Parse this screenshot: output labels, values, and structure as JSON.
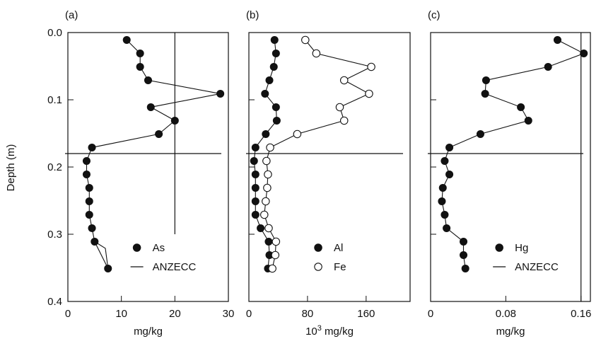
{
  "y_axis_label": "Depth (m)",
  "chart_data": [
    {
      "type": "line",
      "panel_label": "(a)",
      "xlabel": "mg/kg",
      "ylabel": "Depth (m)",
      "xlim": [
        0,
        30
      ],
      "ylim": [
        0.4,
        0.0
      ],
      "x_ticks": [
        0,
        10,
        20,
        30
      ],
      "y_ticks": [
        0.0,
        0.1,
        0.2,
        0.3,
        0.4
      ],
      "y_tick_labels": [
        "0.0",
        "0.1",
        "0.2",
        "0.3",
        "0.4"
      ],
      "hline_depth": 0.18,
      "legend_position": "bottom-right",
      "series": [
        {
          "name": "As",
          "marker": "filled-circle",
          "points": [
            [
              11.0,
              0.011
            ],
            [
              13.5,
              0.031
            ],
            [
              13.5,
              0.051
            ],
            [
              15.0,
              0.071
            ],
            [
              28.5,
              0.091
            ],
            [
              15.5,
              0.111
            ],
            [
              20.0,
              0.131
            ],
            [
              17.0,
              0.151
            ],
            [
              4.5,
              0.171
            ],
            [
              3.5,
              0.191
            ],
            [
              3.5,
              0.211
            ],
            [
              4.0,
              0.231
            ],
            [
              4.0,
              0.251
            ],
            [
              4.0,
              0.271
            ],
            [
              4.5,
              0.291
            ],
            [
              5.0,
              0.311
            ],
            [
              7.5,
              0.351
            ]
          ],
          "path_extra": [
            [
              7.5,
              0.351
            ],
            [
              7.0,
              0.321
            ],
            [
              5.0,
              0.311
            ]
          ]
        },
        {
          "name": "ANZECC",
          "marker": "line",
          "x": 20,
          "y_range": [
            0.0,
            0.3
          ]
        }
      ]
    },
    {
      "type": "line",
      "panel_label": "(b)",
      "xlabel_prefix": "10",
      "xlabel_sup": "3",
      "xlabel_suffix": " mg/kg",
      "xlim": [
        0,
        220
      ],
      "ylim": [
        0.4,
        0.0
      ],
      "x_ticks": [
        0,
        80,
        160
      ],
      "y_ticks": [
        0.0,
        0.1,
        0.2,
        0.3,
        0.4
      ],
      "hline_depth": 0.18,
      "legend_position": "bottom-right",
      "series": [
        {
          "name": "Al",
          "marker": "filled-circle",
          "points": [
            [
              35,
              0.011
            ],
            [
              37,
              0.031
            ],
            [
              34,
              0.051
            ],
            [
              28,
              0.071
            ],
            [
              22,
              0.091
            ],
            [
              37,
              0.111
            ],
            [
              38,
              0.131
            ],
            [
              23,
              0.151
            ],
            [
              9,
              0.171
            ],
            [
              7,
              0.191
            ],
            [
              9,
              0.211
            ],
            [
              9,
              0.231
            ],
            [
              9,
              0.251
            ],
            [
              9,
              0.271
            ],
            [
              16,
              0.291
            ],
            [
              27,
              0.311
            ],
            [
              28,
              0.331
            ],
            [
              26,
              0.351
            ]
          ]
        },
        {
          "name": "Fe",
          "marker": "open-circle",
          "points": [
            [
              77,
              0.011
            ],
            [
              92,
              0.031
            ],
            [
              167,
              0.051
            ],
            [
              130,
              0.071
            ],
            [
              164,
              0.091
            ],
            [
              124,
              0.111
            ],
            [
              130,
              0.131
            ],
            [
              66,
              0.151
            ],
            [
              29,
              0.171
            ],
            [
              24,
              0.191
            ],
            [
              26,
              0.211
            ],
            [
              25,
              0.231
            ],
            [
              23,
              0.251
            ],
            [
              21,
              0.271
            ],
            [
              27,
              0.291
            ],
            [
              37,
              0.311
            ],
            [
              36,
              0.331
            ],
            [
              32,
              0.351
            ]
          ]
        }
      ]
    },
    {
      "type": "line",
      "panel_label": "(c)",
      "xlabel": "mg/kg",
      "xlim": [
        0,
        0.17
      ],
      "ylim": [
        0.4,
        0.0
      ],
      "x_ticks": [
        0,
        0.08,
        0.16
      ],
      "x_tick_labels": [
        "0",
        "0.08",
        "0.16"
      ],
      "y_ticks": [
        0.0,
        0.1,
        0.2,
        0.3,
        0.4
      ],
      "hline_depth": 0.18,
      "legend_position": "bottom-right",
      "series": [
        {
          "name": "Hg",
          "marker": "filled-circle",
          "points": [
            [
              0.135,
              0.011
            ],
            [
              0.163,
              0.031
            ],
            [
              0.125,
              0.051
            ],
            [
              0.059,
              0.071
            ],
            [
              0.058,
              0.091
            ],
            [
              0.096,
              0.111
            ],
            [
              0.104,
              0.131
            ],
            [
              0.053,
              0.151
            ],
            [
              0.02,
              0.171
            ],
            [
              0.015,
              0.191
            ],
            [
              0.02,
              0.211
            ],
            [
              0.013,
              0.231
            ],
            [
              0.012,
              0.251
            ],
            [
              0.015,
              0.271
            ],
            [
              0.017,
              0.291
            ],
            [
              0.035,
              0.311
            ],
            [
              0.035,
              0.331
            ],
            [
              0.037,
              0.351
            ]
          ]
        },
        {
          "name": "ANZECC",
          "marker": "line",
          "x": 0.16,
          "y_range": [
            0.0,
            0.4
          ]
        }
      ]
    }
  ]
}
